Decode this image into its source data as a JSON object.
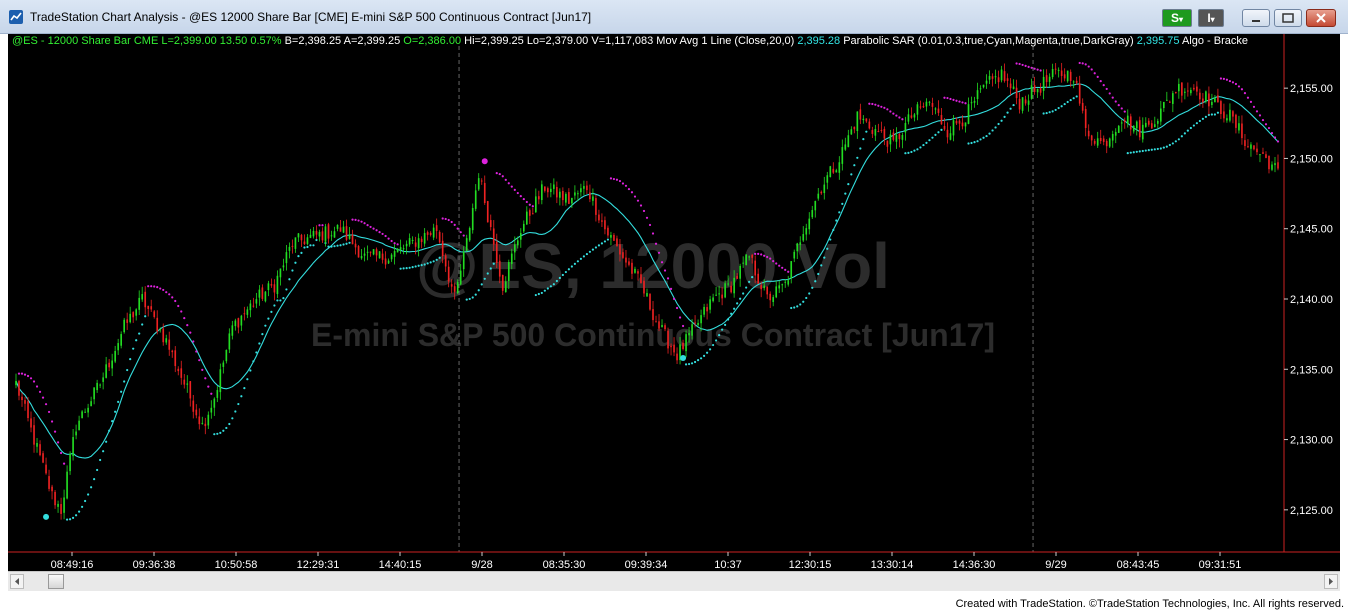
{
  "window": {
    "title": "TradeStation Chart Analysis - @ES 12000 Share Bar [CME] E-mini S&P 500 Continuous Contract [Jun17]",
    "strategy_button_label": "S",
    "indicator_button_label": "I",
    "app_icon": "tradestation-icon",
    "window_icons": [
      "minimize-icon",
      "restore-icon",
      "close-icon"
    ]
  },
  "status_line": [
    {
      "text": "@ES - 12000 Share Bar  CME  L=2,399.00  13.50  0.57%",
      "color": "#33ee33"
    },
    {
      "text": "B=2,398.25",
      "color": "#ffffff"
    },
    {
      "text": "A=2,399.25",
      "color": "#ffffff"
    },
    {
      "text": "O=2,386.00",
      "color": "#33ee33"
    },
    {
      "text": "Hi=2,399.25",
      "color": "#ffffff"
    },
    {
      "text": "Lo=2,379.00",
      "color": "#ffffff"
    },
    {
      "text": "V=1,117,083",
      "color": "#ffffff"
    },
    {
      "text": "Mov Avg 1 Line (Close,20,0)",
      "color": "#ffffff"
    },
    {
      "text": "2,395.28",
      "color": "#33e6e6"
    },
    {
      "text": "Parabolic SAR (0.01,0.3,true,Cyan,Magenta,true,DarkGray)",
      "color": "#ffffff"
    },
    {
      "text": "2,395.75",
      "color": "#33e6e6"
    },
    {
      "text": "Algo - Bracke",
      "color": "#ffffff"
    }
  ],
  "watermark": {
    "line1": "@ES, 12000 Vol",
    "line2": "E-mini S&P 500 Continuous Contract [Jun17]"
  },
  "footer": "Created with TradeStation. ©TradeStation Technologies, Inc. All rights reserved.",
  "colors": {
    "up_bar": "#22dd22",
    "down_bar": "#ee2222",
    "moving_average": "#33dddd",
    "sar_long": "#33dddd",
    "sar_short": "#dd22dd",
    "axis_line": "#cc2222",
    "background": "#000000"
  },
  "chart_data": {
    "type": "candlestick",
    "y_axis": {
      "ticks": [
        2125,
        2130,
        2135,
        2140,
        2145,
        2150,
        2155
      ],
      "tick_labels": [
        "2,125.00",
        "2,130.00",
        "2,135.00",
        "2,140.00",
        "2,145.00",
        "2,150.00",
        "2,155.00"
      ],
      "range": [
        2122,
        2158
      ],
      "position": "right"
    },
    "x_labels": [
      "08:49:16",
      "09:36:38",
      "10:50:58",
      "12:29:31",
      "14:40:15",
      "9/28",
      "08:35:30",
      "09:39:34",
      "10:37",
      "12:30:15",
      "13:30:14",
      "14:36:30",
      "9/29",
      "08:43:45",
      "09:31:51"
    ],
    "session_breaks_after_label": [
      "14:40:15",
      "14:36:30"
    ],
    "price_path_keypoints": [
      [
        0,
        2134
      ],
      [
        6,
        2130
      ],
      [
        12,
        2126
      ],
      [
        15,
        2125
      ],
      [
        20,
        2131
      ],
      [
        28,
        2134
      ],
      [
        36,
        2138
      ],
      [
        42,
        2140
      ],
      [
        50,
        2137
      ],
      [
        56,
        2134
      ],
      [
        62,
        2131
      ],
      [
        66,
        2133
      ],
      [
        72,
        2138
      ],
      [
        80,
        2140
      ],
      [
        86,
        2141
      ],
      [
        92,
        2144
      ],
      [
        100,
        2144.5
      ],
      [
        108,
        2145
      ],
      [
        116,
        2143
      ],
      [
        124,
        2143
      ],
      [
        132,
        2144
      ],
      [
        140,
        2145
      ],
      [
        146,
        2140
      ],
      [
        150,
        2144
      ],
      [
        154,
        2149
      ],
      [
        158,
        2145
      ],
      [
        162,
        2141
      ],
      [
        168,
        2145
      ],
      [
        176,
        2148
      ],
      [
        184,
        2147
      ],
      [
        190,
        2148
      ],
      [
        196,
        2145
      ],
      [
        202,
        2143
      ],
      [
        208,
        2141
      ],
      [
        214,
        2138
      ],
      [
        220,
        2136
      ],
      [
        226,
        2138
      ],
      [
        232,
        2140
      ],
      [
        238,
        2141
      ],
      [
        244,
        2143
      ],
      [
        250,
        2140
      ],
      [
        256,
        2141
      ],
      [
        262,
        2145
      ],
      [
        268,
        2148
      ],
      [
        274,
        2150
      ],
      [
        280,
        2153
      ],
      [
        286,
        2152
      ],
      [
        292,
        2151
      ],
      [
        298,
        2153
      ],
      [
        304,
        2154
      ],
      [
        310,
        2152
      ],
      [
        316,
        2153
      ],
      [
        322,
        2155
      ],
      [
        328,
        2156
      ],
      [
        334,
        2154
      ],
      [
        340,
        2155
      ],
      [
        346,
        2156
      ],
      [
        352,
        2156
      ],
      [
        356,
        2152
      ],
      [
        362,
        2151
      ],
      [
        368,
        2153
      ],
      [
        374,
        2152
      ],
      [
        380,
        2153
      ],
      [
        386,
        2155
      ],
      [
        392,
        2155
      ],
      [
        398,
        2154
      ],
      [
        404,
        2153
      ],
      [
        410,
        2151
      ],
      [
        416,
        2150
      ],
      [
        420,
        2149
      ]
    ],
    "bar_count": 421,
    "moving_average": {
      "name": "Mov Avg 1 Line (Close,20,0)",
      "period": 20
    },
    "parabolic_sar": {
      "name": "Parabolic SAR",
      "af_step": 0.01,
      "af_max": 0.3
    },
    "sar_markers": [
      {
        "bar": 10,
        "price": 2124.5,
        "color": "#33dddd"
      },
      {
        "bar": 156,
        "price": 2149.8,
        "color": "#dd22dd"
      },
      {
        "bar": 222,
        "price": 2135.8,
        "color": "#33dddd"
      }
    ]
  }
}
